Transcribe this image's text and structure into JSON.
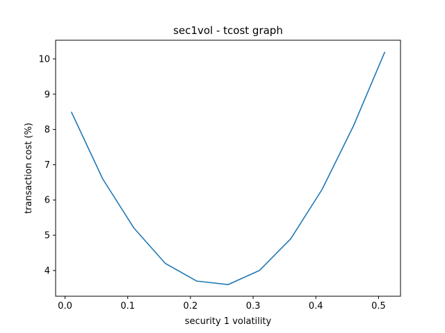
{
  "chart_data": {
    "type": "line",
    "title": "sec1vol - tcost graph",
    "xlabel": "security 1 volatility",
    "ylabel": "transaction cost (%)",
    "xlim": [
      -0.015,
      0.535
    ],
    "ylim": [
      3.27,
      10.53
    ],
    "xticks": [
      0.0,
      0.1,
      0.2,
      0.3,
      0.4,
      0.5
    ],
    "xtick_labels": [
      "0.0",
      "0.1",
      "0.2",
      "0.3",
      "0.4",
      "0.5"
    ],
    "yticks": [
      4,
      5,
      6,
      7,
      8,
      9,
      10
    ],
    "ytick_labels": [
      "4",
      "5",
      "6",
      "7",
      "8",
      "9",
      "10"
    ],
    "grid": false,
    "legend": "none",
    "series": [
      {
        "color": "#1f77b4",
        "x": [
          0.01,
          0.06,
          0.11,
          0.16,
          0.21,
          0.26,
          0.31,
          0.36,
          0.41,
          0.46,
          0.51
        ],
        "y": [
          8.5,
          6.6,
          5.2,
          4.2,
          3.7,
          3.6,
          4.0,
          4.9,
          6.3,
          8.1,
          10.2
        ]
      }
    ]
  }
}
